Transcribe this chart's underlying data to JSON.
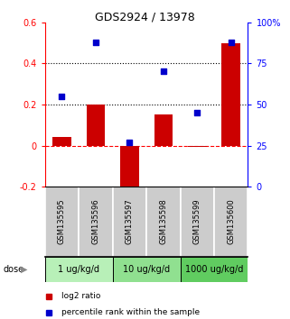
{
  "title": "GDS2924 / 13978",
  "samples": [
    "GSM135595",
    "GSM135596",
    "GSM135597",
    "GSM135598",
    "GSM135599",
    "GSM135600"
  ],
  "log2_ratio": [
    0.04,
    0.2,
    -0.27,
    0.15,
    -0.005,
    0.5
  ],
  "percentile_rank": [
    0.55,
    0.88,
    0.27,
    0.7,
    0.45,
    0.88
  ],
  "dose_groups": [
    {
      "label": "1 ug/kg/d",
      "indices": [
        0,
        1
      ],
      "color": "#b8f0b8"
    },
    {
      "label": "10 ug/kg/d",
      "indices": [
        2,
        3
      ],
      "color": "#90e090"
    },
    {
      "label": "1000 ug/kg/d",
      "indices": [
        4,
        5
      ],
      "color": "#60cc60"
    }
  ],
  "bar_color": "#cc0000",
  "dot_color": "#0000cc",
  "left_ylim": [
    -0.2,
    0.6
  ],
  "right_ylim": [
    0,
    1.0
  ],
  "left_yticks": [
    -0.2,
    0.0,
    0.2,
    0.4,
    0.6
  ],
  "left_yticklabels": [
    "-0.2",
    "0",
    "0.2",
    "0.4",
    "0.6"
  ],
  "right_yticks": [
    0.0,
    0.25,
    0.5,
    0.75,
    1.0
  ],
  "right_yticklabels": [
    "0",
    "25",
    "50",
    "75",
    "100%"
  ],
  "hline_dotted": [
    0.4,
    0.2
  ],
  "hline_dashed_red": 0.0,
  "sample_box_color": "#cccccc",
  "bar_width": 0.55,
  "dot_size": 22
}
